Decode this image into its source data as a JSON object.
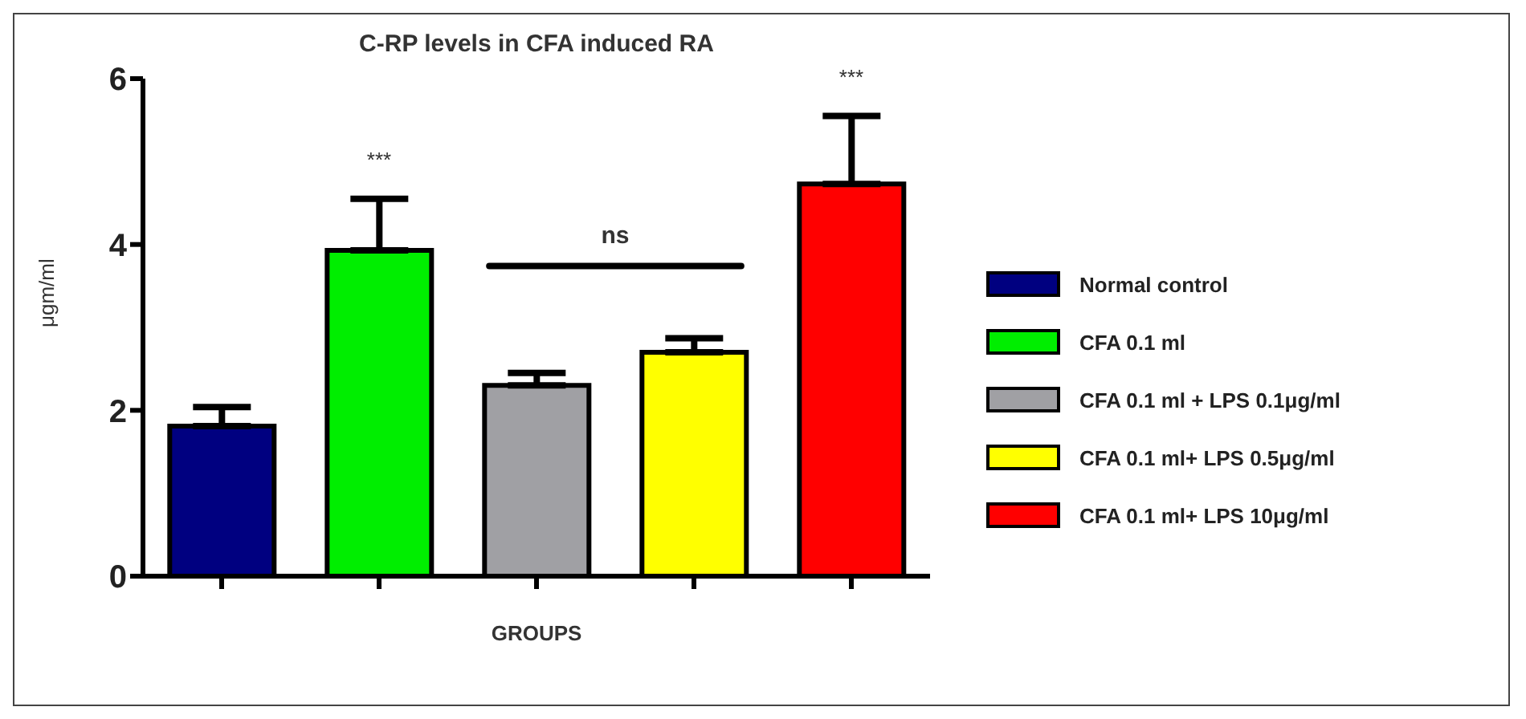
{
  "chart_data": {
    "type": "bar",
    "title": "C-RP levels in CFA induced RA",
    "xlabel": "GROUPS",
    "ylabel": "μgm/ml",
    "categories": [
      null,
      null,
      null,
      null,
      null
    ],
    "series": [
      {
        "name": "Normal control",
        "color": "#000080",
        "values": [
          1.81,
          null,
          null,
          null,
          null
        ],
        "errors": [
          0.23,
          null,
          null,
          null,
          null
        ]
      },
      {
        "name": "CFA 0.1 ml",
        "color": "#00ee00",
        "values": [
          null,
          3.93,
          null,
          null,
          null
        ],
        "errors": [
          null,
          0.62,
          null,
          null,
          null
        ]
      },
      {
        "name": "CFA 0.1 ml + LPS 0.1μg/ml",
        "color": "#a0a0a4",
        "values": [
          null,
          null,
          2.3,
          null,
          null
        ],
        "errors": [
          null,
          null,
          0.15,
          null,
          null
        ]
      },
      {
        "name": "CFA 0.1 ml+ LPS 0.5μg/ml",
        "color": "#ffff00",
        "values": [
          null,
          null,
          null,
          2.7,
          null
        ],
        "errors": [
          null,
          null,
          null,
          0.17,
          null
        ]
      },
      {
        "name": "CFA 0.1 ml+ LPS 10μg/ml",
        "color": "#ff0000",
        "values": [
          null,
          null,
          null,
          null,
          4.73
        ],
        "errors": [
          null,
          null,
          null,
          null,
          0.82
        ]
      }
    ],
    "annotations": [
      "***",
      "ns",
      "***"
    ],
    "ylim": [
      0,
      6
    ],
    "yticks": [
      0,
      2,
      4,
      6
    ],
    "grid": false,
    "legend": "right"
  }
}
